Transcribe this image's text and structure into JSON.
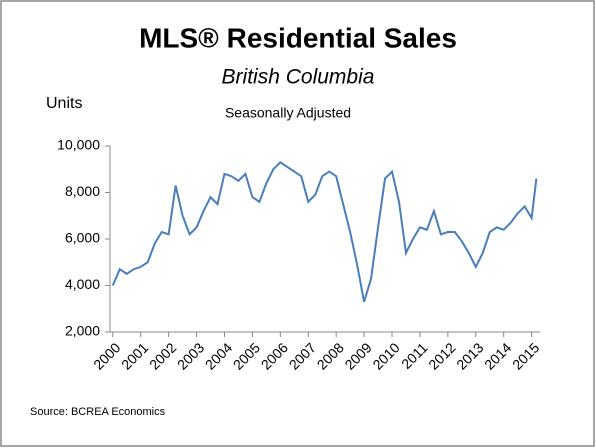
{
  "chart_data": {
    "type": "line",
    "title": "MLS® Residential Sales",
    "subtitle": "British Columbia",
    "note": "Seasonally Adjusted",
    "y_label": "Units",
    "source": "Source: BCREA Economics",
    "color": "#4a7ebb",
    "x": [
      2000,
      2000.25,
      2000.5,
      2000.75,
      2001,
      2001.25,
      2001.5,
      2001.75,
      2002,
      2002.25,
      2002.5,
      2002.75,
      2003,
      2003.25,
      2003.5,
      2003.75,
      2004,
      2004.25,
      2004.5,
      2004.75,
      2005,
      2005.25,
      2005.5,
      2005.75,
      2006,
      2006.25,
      2006.5,
      2006.75,
      2007,
      2007.25,
      2007.5,
      2007.75,
      2008,
      2008.25,
      2008.5,
      2008.75,
      2009,
      2009.25,
      2009.5,
      2009.75,
      2010,
      2010.25,
      2010.5,
      2010.75,
      2011,
      2011.25,
      2011.5,
      2011.75,
      2012,
      2012.25,
      2012.5,
      2012.75,
      2013,
      2013.25,
      2013.5,
      2013.75,
      2014,
      2014.25,
      2014.5,
      2014.75,
      2015,
      2015.17
    ],
    "values": [
      4000,
      4700,
      4500,
      4700,
      4800,
      5000,
      5800,
      6300,
      6200,
      8300,
      7000,
      6200,
      6500,
      7200,
      7800,
      7500,
      8800,
      8700,
      8500,
      8800,
      7800,
      7600,
      8400,
      9000,
      9300,
      9100,
      8900,
      8700,
      7600,
      7900,
      8700,
      8900,
      8700,
      7500,
      6300,
      4900,
      3300,
      4300,
      6500,
      8600,
      8900,
      7600,
      5400,
      6000,
      6500,
      6400,
      7200,
      6200,
      6300,
      6300,
      5900,
      5400,
      4800,
      5400,
      6300,
      6500,
      6400,
      6700,
      7100,
      7400,
      6900,
      8600
    ],
    "xlim": [
      1999.9,
      2015.3
    ],
    "xticks": [
      2000,
      2001,
      2002,
      2003,
      2004,
      2005,
      2006,
      2007,
      2008,
      2009,
      2010,
      2011,
      2012,
      2013,
      2014,
      2015
    ],
    "ylim": [
      2000,
      10000
    ],
    "yticks": [
      {
        "value": 2000,
        "label": "2,000"
      },
      {
        "value": 4000,
        "label": "4,000"
      },
      {
        "value": 6000,
        "label": "6,000"
      },
      {
        "value": 8000,
        "label": "8,000"
      },
      {
        "value": 10000,
        "label": "10,000"
      }
    ]
  }
}
